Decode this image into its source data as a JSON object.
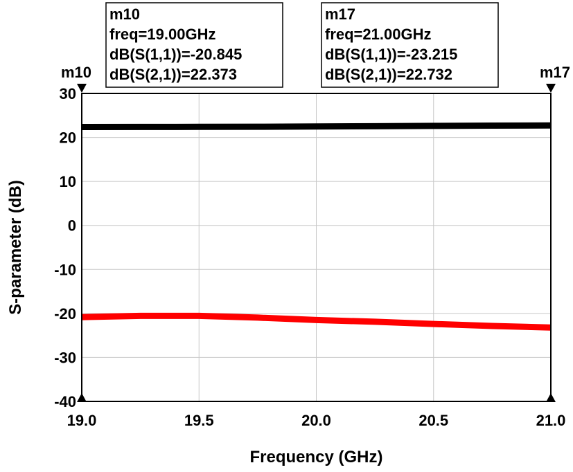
{
  "chart_data": {
    "type": "line",
    "xlabel": "Frequency (GHz)",
    "ylabel": "S-parameter (dB)",
    "xlim": [
      19.0,
      21.0
    ],
    "ylim": [
      -40,
      30
    ],
    "x_ticks": [
      "19.0",
      "19.5",
      "20.0",
      "20.5",
      "21.0"
    ],
    "y_ticks": [
      "30",
      "20",
      "10",
      "0",
      "-10",
      "-20",
      "-30",
      "-40"
    ],
    "grid": true,
    "series": [
      {
        "color": "#000000",
        "x": [
          19.0,
          19.25,
          19.5,
          19.75,
          20.0,
          20.25,
          20.5,
          20.75,
          21.0
        ],
        "y": [
          22.373,
          22.38,
          22.4,
          22.43,
          22.48,
          22.55,
          22.62,
          22.68,
          22.732
        ]
      },
      {
        "color": "#ff0000",
        "x": [
          19.0,
          19.25,
          19.5,
          19.75,
          20.0,
          20.25,
          20.5,
          20.75,
          21.0
        ],
        "y": [
          -20.845,
          -20.55,
          -20.55,
          -20.95,
          -21.5,
          -21.9,
          -22.4,
          -22.85,
          -23.215
        ]
      }
    ],
    "markers": [
      {
        "name": "m10",
        "x": 19.0,
        "lines": [
          "m10",
          "freq=19.00GHz",
          "dB(S(1,1))=-20.845",
          "dB(S(2,1))=22.373"
        ]
      },
      {
        "name": "m17",
        "x": 21.0,
        "lines": [
          "m17",
          "freq=21.00GHz",
          "dB(S(1,1))=-23.215",
          "dB(S(2,1))=22.732"
        ]
      }
    ]
  }
}
